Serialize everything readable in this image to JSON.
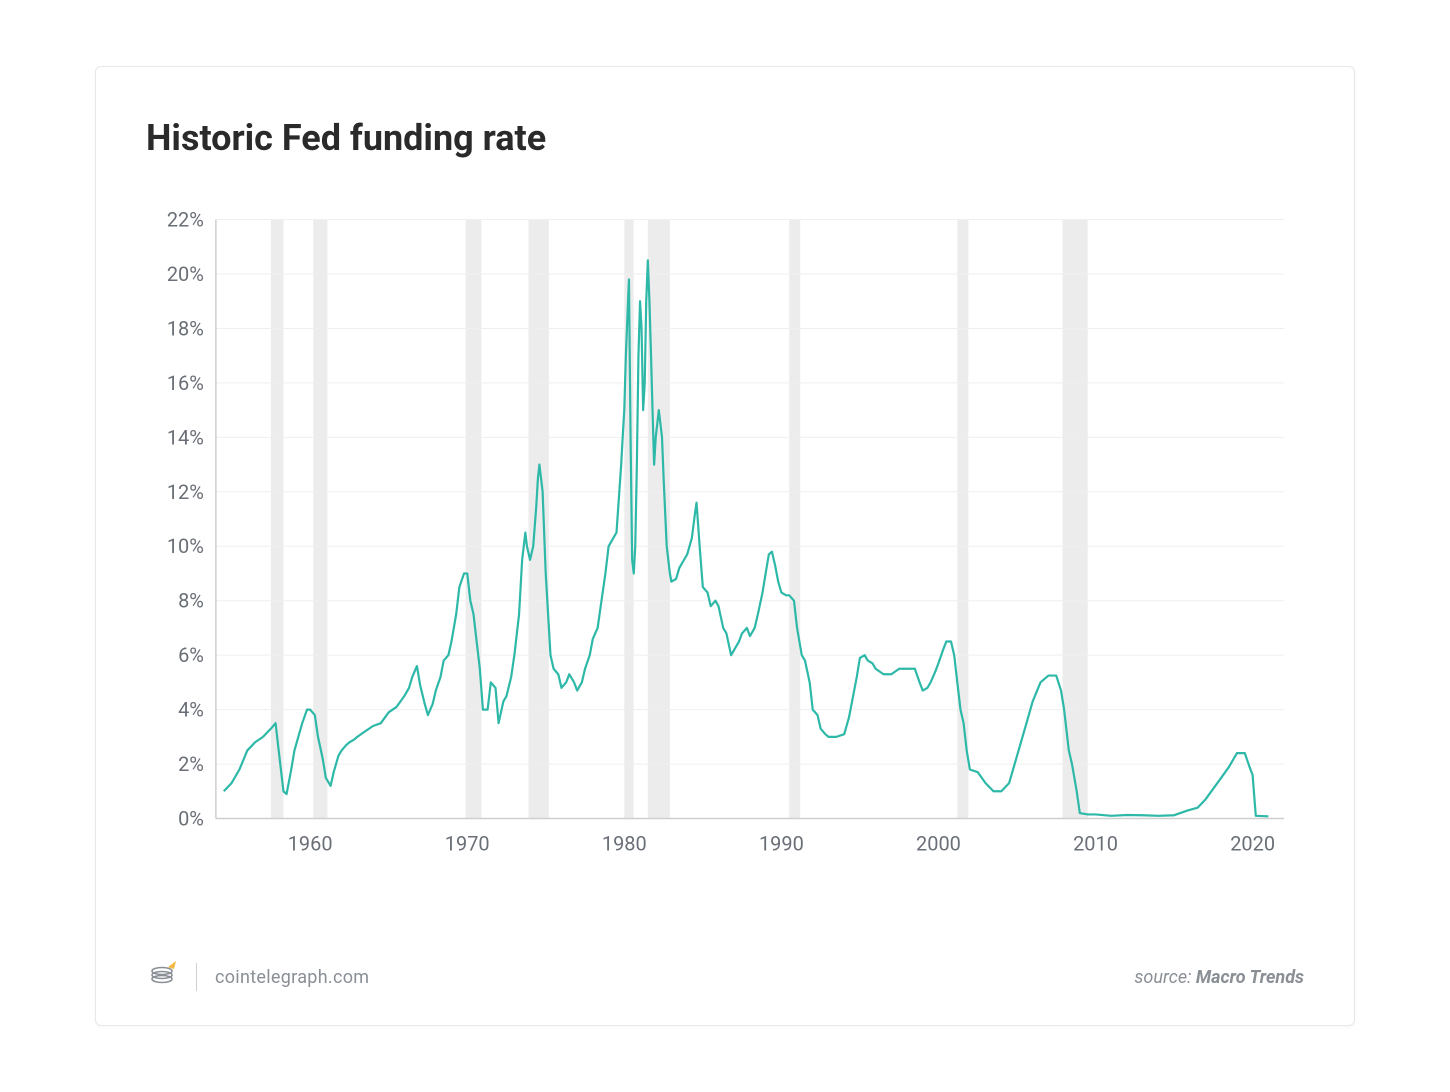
{
  "title": "Historic Fed funding rate",
  "footer": {
    "site": "cointelegraph.com",
    "source_prefix": "source: ",
    "source_name": "Macro Trends"
  },
  "chart": {
    "type": "line",
    "line_color": "#2db8a8",
    "line_width": 2.2,
    "background_color": "#ffffff",
    "grid_color": "#efefef",
    "axis_color": "#cfcfcf",
    "recession_band_color": "#ececec",
    "label_color": "#6a6f77",
    "label_fontsize": 20,
    "ylim": [
      0,
      22
    ],
    "ytick_step": 2,
    "ytick_suffix": "%",
    "xlim": [
      1954,
      2022
    ],
    "xticks": [
      1960,
      1970,
      1980,
      1990,
      2000,
      2010,
      2020
    ],
    "recession_bands": [
      [
        1957.5,
        1958.3
      ],
      [
        1960.2,
        1961.1
      ],
      [
        1969.9,
        1970.9
      ],
      [
        1973.9,
        1975.2
      ],
      [
        1980.0,
        1980.6
      ],
      [
        1981.5,
        1982.9
      ],
      [
        1990.5,
        1991.2
      ],
      [
        2001.2,
        2001.9
      ],
      [
        2007.9,
        2009.5
      ]
    ],
    "series": [
      {
        "x": 1954.5,
        "y": 1.0
      },
      {
        "x": 1955.0,
        "y": 1.3
      },
      {
        "x": 1955.5,
        "y": 1.8
      },
      {
        "x": 1956.0,
        "y": 2.5
      },
      {
        "x": 1956.5,
        "y": 2.8
      },
      {
        "x": 1957.0,
        "y": 3.0
      },
      {
        "x": 1957.5,
        "y": 3.3
      },
      {
        "x": 1957.8,
        "y": 3.5
      },
      {
        "x": 1958.0,
        "y": 2.5
      },
      {
        "x": 1958.3,
        "y": 1.0
      },
      {
        "x": 1958.5,
        "y": 0.9
      },
      {
        "x": 1958.8,
        "y": 1.8
      },
      {
        "x": 1959.0,
        "y": 2.5
      },
      {
        "x": 1959.5,
        "y": 3.5
      },
      {
        "x": 1959.8,
        "y": 4.0
      },
      {
        "x": 1960.0,
        "y": 4.0
      },
      {
        "x": 1960.3,
        "y": 3.8
      },
      {
        "x": 1960.5,
        "y": 3.0
      },
      {
        "x": 1960.8,
        "y": 2.2
      },
      {
        "x": 1961.0,
        "y": 1.5
      },
      {
        "x": 1961.3,
        "y": 1.2
      },
      {
        "x": 1961.5,
        "y": 1.7
      },
      {
        "x": 1961.8,
        "y": 2.3
      },
      {
        "x": 1962.0,
        "y": 2.5
      },
      {
        "x": 1962.3,
        "y": 2.7
      },
      {
        "x": 1962.5,
        "y": 2.8
      },
      {
        "x": 1962.8,
        "y": 2.9
      },
      {
        "x": 1963.0,
        "y": 3.0
      },
      {
        "x": 1963.5,
        "y": 3.2
      },
      {
        "x": 1964.0,
        "y": 3.4
      },
      {
        "x": 1964.5,
        "y": 3.5
      },
      {
        "x": 1965.0,
        "y": 3.9
      },
      {
        "x": 1965.5,
        "y": 4.1
      },
      {
        "x": 1966.0,
        "y": 4.5
      },
      {
        "x": 1966.3,
        "y": 4.8
      },
      {
        "x": 1966.5,
        "y": 5.2
      },
      {
        "x": 1966.8,
        "y": 5.6
      },
      {
        "x": 1967.0,
        "y": 4.9
      },
      {
        "x": 1967.3,
        "y": 4.2
      },
      {
        "x": 1967.5,
        "y": 3.8
      },
      {
        "x": 1967.8,
        "y": 4.2
      },
      {
        "x": 1968.0,
        "y": 4.7
      },
      {
        "x": 1968.3,
        "y": 5.2
      },
      {
        "x": 1968.5,
        "y": 5.8
      },
      {
        "x": 1968.8,
        "y": 6.0
      },
      {
        "x": 1969.0,
        "y": 6.5
      },
      {
        "x": 1969.3,
        "y": 7.5
      },
      {
        "x": 1969.5,
        "y": 8.5
      },
      {
        "x": 1969.8,
        "y": 9.0
      },
      {
        "x": 1970.0,
        "y": 9.0
      },
      {
        "x": 1970.2,
        "y": 8.0
      },
      {
        "x": 1970.4,
        "y": 7.5
      },
      {
        "x": 1970.6,
        "y": 6.5
      },
      {
        "x": 1970.8,
        "y": 5.5
      },
      {
        "x": 1971.0,
        "y": 4.0
      },
      {
        "x": 1971.3,
        "y": 4.0
      },
      {
        "x": 1971.5,
        "y": 5.0
      },
      {
        "x": 1971.8,
        "y": 4.8
      },
      {
        "x": 1972.0,
        "y": 3.5
      },
      {
        "x": 1972.3,
        "y": 4.3
      },
      {
        "x": 1972.5,
        "y": 4.5
      },
      {
        "x": 1972.8,
        "y": 5.2
      },
      {
        "x": 1973.0,
        "y": 6.0
      },
      {
        "x": 1973.3,
        "y": 7.5
      },
      {
        "x": 1973.5,
        "y": 9.5
      },
      {
        "x": 1973.7,
        "y": 10.5
      },
      {
        "x": 1973.8,
        "y": 10.0
      },
      {
        "x": 1974.0,
        "y": 9.5
      },
      {
        "x": 1974.2,
        "y": 10.0
      },
      {
        "x": 1974.4,
        "y": 11.5
      },
      {
        "x": 1974.5,
        "y": 12.5
      },
      {
        "x": 1974.6,
        "y": 13.0
      },
      {
        "x": 1974.8,
        "y": 12.0
      },
      {
        "x": 1975.0,
        "y": 9.0
      },
      {
        "x": 1975.3,
        "y": 6.0
      },
      {
        "x": 1975.5,
        "y": 5.5
      },
      {
        "x": 1975.8,
        "y": 5.3
      },
      {
        "x": 1976.0,
        "y": 4.8
      },
      {
        "x": 1976.3,
        "y": 5.0
      },
      {
        "x": 1976.5,
        "y": 5.3
      },
      {
        "x": 1976.8,
        "y": 5.0
      },
      {
        "x": 1977.0,
        "y": 4.7
      },
      {
        "x": 1977.3,
        "y": 5.0
      },
      {
        "x": 1977.5,
        "y": 5.5
      },
      {
        "x": 1977.8,
        "y": 6.0
      },
      {
        "x": 1978.0,
        "y": 6.6
      },
      {
        "x": 1978.3,
        "y": 7.0
      },
      {
        "x": 1978.5,
        "y": 7.8
      },
      {
        "x": 1978.8,
        "y": 9.0
      },
      {
        "x": 1979.0,
        "y": 10.0
      },
      {
        "x": 1979.3,
        "y": 10.3
      },
      {
        "x": 1979.5,
        "y": 10.5
      },
      {
        "x": 1979.8,
        "y": 13.0
      },
      {
        "x": 1979.9,
        "y": 14.0
      },
      {
        "x": 1980.0,
        "y": 15.0
      },
      {
        "x": 1980.1,
        "y": 17.0
      },
      {
        "x": 1980.2,
        "y": 18.5
      },
      {
        "x": 1980.3,
        "y": 19.8
      },
      {
        "x": 1980.4,
        "y": 14.0
      },
      {
        "x": 1980.5,
        "y": 9.5
      },
      {
        "x": 1980.6,
        "y": 9.0
      },
      {
        "x": 1980.7,
        "y": 10.0
      },
      {
        "x": 1980.8,
        "y": 13.0
      },
      {
        "x": 1980.9,
        "y": 17.0
      },
      {
        "x": 1981.0,
        "y": 19.0
      },
      {
        "x": 1981.1,
        "y": 18.0
      },
      {
        "x": 1981.2,
        "y": 15.0
      },
      {
        "x": 1981.3,
        "y": 16.0
      },
      {
        "x": 1981.4,
        "y": 19.0
      },
      {
        "x": 1981.5,
        "y": 20.5
      },
      {
        "x": 1981.6,
        "y": 19.0
      },
      {
        "x": 1981.7,
        "y": 17.0
      },
      {
        "x": 1981.8,
        "y": 15.0
      },
      {
        "x": 1981.9,
        "y": 13.0
      },
      {
        "x": 1982.0,
        "y": 14.0
      },
      {
        "x": 1982.2,
        "y": 15.0
      },
      {
        "x": 1982.4,
        "y": 14.0
      },
      {
        "x": 1982.5,
        "y": 12.5
      },
      {
        "x": 1982.7,
        "y": 10.0
      },
      {
        "x": 1982.9,
        "y": 9.0
      },
      {
        "x": 1983.0,
        "y": 8.7
      },
      {
        "x": 1983.3,
        "y": 8.8
      },
      {
        "x": 1983.5,
        "y": 9.2
      },
      {
        "x": 1983.8,
        "y": 9.5
      },
      {
        "x": 1984.0,
        "y": 9.7
      },
      {
        "x": 1984.3,
        "y": 10.3
      },
      {
        "x": 1984.5,
        "y": 11.2
      },
      {
        "x": 1984.6,
        "y": 11.6
      },
      {
        "x": 1984.8,
        "y": 10.0
      },
      {
        "x": 1985.0,
        "y": 8.5
      },
      {
        "x": 1985.3,
        "y": 8.3
      },
      {
        "x": 1985.5,
        "y": 7.8
      },
      {
        "x": 1985.8,
        "y": 8.0
      },
      {
        "x": 1986.0,
        "y": 7.8
      },
      {
        "x": 1986.3,
        "y": 7.0
      },
      {
        "x": 1986.5,
        "y": 6.8
      },
      {
        "x": 1986.8,
        "y": 6.0
      },
      {
        "x": 1987.0,
        "y": 6.2
      },
      {
        "x": 1987.3,
        "y": 6.5
      },
      {
        "x": 1987.5,
        "y": 6.8
      },
      {
        "x": 1987.8,
        "y": 7.0
      },
      {
        "x": 1988.0,
        "y": 6.7
      },
      {
        "x": 1988.3,
        "y": 7.0
      },
      {
        "x": 1988.5,
        "y": 7.5
      },
      {
        "x": 1988.8,
        "y": 8.3
      },
      {
        "x": 1989.0,
        "y": 9.0
      },
      {
        "x": 1989.2,
        "y": 9.7
      },
      {
        "x": 1989.4,
        "y": 9.8
      },
      {
        "x": 1989.6,
        "y": 9.3
      },
      {
        "x": 1989.8,
        "y": 8.7
      },
      {
        "x": 1990.0,
        "y": 8.3
      },
      {
        "x": 1990.3,
        "y": 8.2
      },
      {
        "x": 1990.5,
        "y": 8.2
      },
      {
        "x": 1990.8,
        "y": 8.0
      },
      {
        "x": 1991.0,
        "y": 7.0
      },
      {
        "x": 1991.3,
        "y": 6.0
      },
      {
        "x": 1991.5,
        "y": 5.8
      },
      {
        "x": 1991.8,
        "y": 5.0
      },
      {
        "x": 1992.0,
        "y": 4.0
      },
      {
        "x": 1992.3,
        "y": 3.8
      },
      {
        "x": 1992.5,
        "y": 3.3
      },
      {
        "x": 1992.8,
        "y": 3.1
      },
      {
        "x": 1993.0,
        "y": 3.0
      },
      {
        "x": 1993.5,
        "y": 3.0
      },
      {
        "x": 1994.0,
        "y": 3.1
      },
      {
        "x": 1994.3,
        "y": 3.7
      },
      {
        "x": 1994.5,
        "y": 4.3
      },
      {
        "x": 1994.8,
        "y": 5.2
      },
      {
        "x": 1995.0,
        "y": 5.9
      },
      {
        "x": 1995.3,
        "y": 6.0
      },
      {
        "x": 1995.5,
        "y": 5.8
      },
      {
        "x": 1995.8,
        "y": 5.7
      },
      {
        "x": 1996.0,
        "y": 5.5
      },
      {
        "x": 1996.5,
        "y": 5.3
      },
      {
        "x": 1997.0,
        "y": 5.3
      },
      {
        "x": 1997.5,
        "y": 5.5
      },
      {
        "x": 1998.0,
        "y": 5.5
      },
      {
        "x": 1998.5,
        "y": 5.5
      },
      {
        "x": 1998.8,
        "y": 5.0
      },
      {
        "x": 1999.0,
        "y": 4.7
      },
      {
        "x": 1999.3,
        "y": 4.8
      },
      {
        "x": 1999.5,
        "y": 5.0
      },
      {
        "x": 1999.8,
        "y": 5.4
      },
      {
        "x": 2000.0,
        "y": 5.7
      },
      {
        "x": 2000.3,
        "y": 6.2
      },
      {
        "x": 2000.5,
        "y": 6.5
      },
      {
        "x": 2000.8,
        "y": 6.5
      },
      {
        "x": 2001.0,
        "y": 6.0
      },
      {
        "x": 2001.2,
        "y": 5.0
      },
      {
        "x": 2001.4,
        "y": 4.0
      },
      {
        "x": 2001.6,
        "y": 3.5
      },
      {
        "x": 2001.8,
        "y": 2.5
      },
      {
        "x": 2002.0,
        "y": 1.8
      },
      {
        "x": 2002.5,
        "y": 1.7
      },
      {
        "x": 2003.0,
        "y": 1.3
      },
      {
        "x": 2003.5,
        "y": 1.0
      },
      {
        "x": 2004.0,
        "y": 1.0
      },
      {
        "x": 2004.5,
        "y": 1.3
      },
      {
        "x": 2005.0,
        "y": 2.3
      },
      {
        "x": 2005.5,
        "y": 3.3
      },
      {
        "x": 2006.0,
        "y": 4.3
      },
      {
        "x": 2006.5,
        "y": 5.0
      },
      {
        "x": 2007.0,
        "y": 5.25
      },
      {
        "x": 2007.5,
        "y": 5.25
      },
      {
        "x": 2007.8,
        "y": 4.7
      },
      {
        "x": 2008.0,
        "y": 4.0
      },
      {
        "x": 2008.3,
        "y": 2.5
      },
      {
        "x": 2008.5,
        "y": 2.0
      },
      {
        "x": 2008.8,
        "y": 1.0
      },
      {
        "x": 2009.0,
        "y": 0.2
      },
      {
        "x": 2009.5,
        "y": 0.15
      },
      {
        "x": 2010.0,
        "y": 0.15
      },
      {
        "x": 2011.0,
        "y": 0.1
      },
      {
        "x": 2012.0,
        "y": 0.13
      },
      {
        "x": 2013.0,
        "y": 0.12
      },
      {
        "x": 2014.0,
        "y": 0.1
      },
      {
        "x": 2015.0,
        "y": 0.12
      },
      {
        "x": 2015.9,
        "y": 0.3
      },
      {
        "x": 2016.5,
        "y": 0.4
      },
      {
        "x": 2017.0,
        "y": 0.7
      },
      {
        "x": 2017.5,
        "y": 1.1
      },
      {
        "x": 2018.0,
        "y": 1.5
      },
      {
        "x": 2018.5,
        "y": 1.9
      },
      {
        "x": 2019.0,
        "y": 2.4
      },
      {
        "x": 2019.5,
        "y": 2.4
      },
      {
        "x": 2019.8,
        "y": 1.9
      },
      {
        "x": 2020.0,
        "y": 1.6
      },
      {
        "x": 2020.2,
        "y": 0.1
      },
      {
        "x": 2021.0,
        "y": 0.08
      }
    ]
  }
}
